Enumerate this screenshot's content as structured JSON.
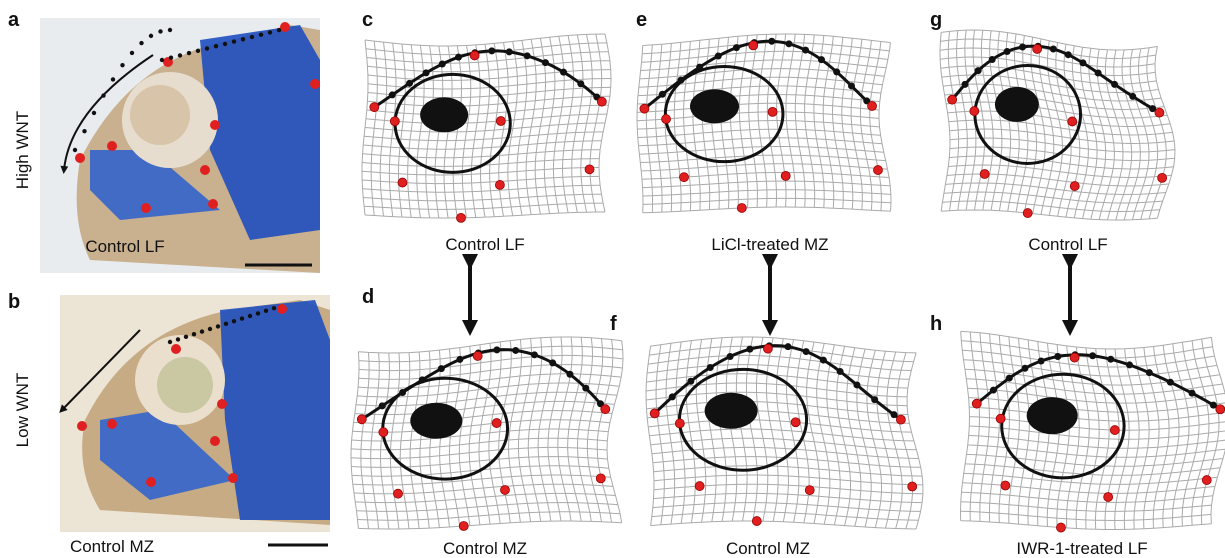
{
  "row_labels": [
    "High WNT",
    "Low WNT"
  ],
  "panels": [
    {
      "letter": "a",
      "caption": "Control  LF"
    },
    {
      "letter": "b",
      "caption": "Control MZ"
    },
    {
      "letter": "c",
      "caption": "Control  LF"
    },
    {
      "letter": "d",
      "caption": "Control MZ"
    },
    {
      "letter": "e",
      "caption": "LiCl-treated MZ"
    },
    {
      "letter": "f",
      "caption": "Control MZ"
    },
    {
      "letter": "g",
      "caption": "Control  LF"
    },
    {
      "letter": "h",
      "caption": "IWR-1-treated LF"
    }
  ]
}
